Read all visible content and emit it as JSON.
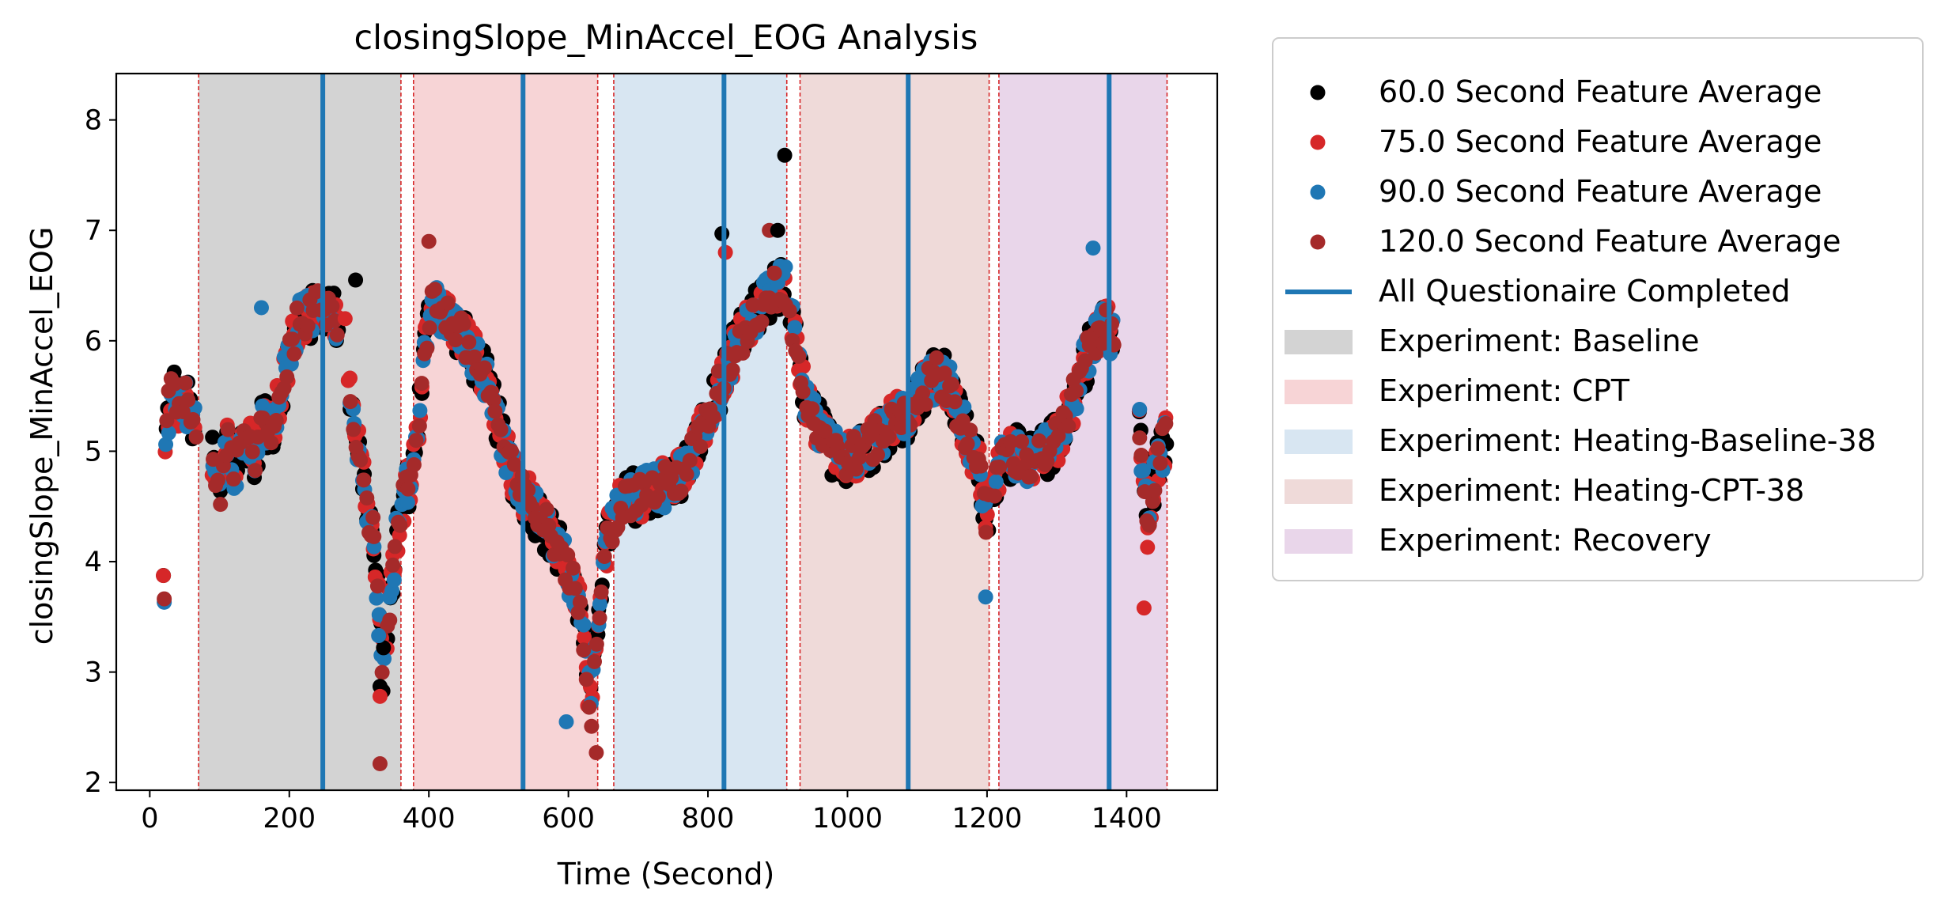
{
  "chart_data": {
    "type": "scatter",
    "title": "closingSlope_MinAccel_EOG Analysis",
    "xlabel": "Time (Second)",
    "ylabel": "closingSlope_MinAccel_EOG",
    "xlim": [
      -48,
      1530
    ],
    "ylim": [
      1.93,
      8.42
    ],
    "x_ticks": [
      0,
      200,
      400,
      600,
      800,
      1000,
      1200,
      1400
    ],
    "y_ticks": [
      2,
      3,
      4,
      5,
      6,
      7,
      8
    ],
    "grid": false,
    "legend_position": "outside-right",
    "phases": [
      {
        "name": "Experiment: Baseline",
        "start": 70,
        "end": 360,
        "color": "#d3d3d3"
      },
      {
        "name": "Experiment: CPT",
        "start": 378,
        "end": 642,
        "color": "#f7d4d6"
      },
      {
        "name": "Experiment: Heating-Baseline-38",
        "start": 665,
        "end": 913,
        "color": "#d8e6f2"
      },
      {
        "name": "Experiment: Heating-CPT-38",
        "start": 932,
        "end": 1203,
        "color": "#efdad9"
      },
      {
        "name": "Experiment: Recovery",
        "start": 1217,
        "end": 1458,
        "color": "#e9d6ea"
      }
    ],
    "phase_boundaries": [
      70,
      360,
      378,
      642,
      665,
      913,
      932,
      1203,
      1217,
      1458
    ],
    "questionnaire": {
      "label": "All Questionaire Completed",
      "color": "#1f77b4",
      "x": [
        248,
        535,
        823,
        1087,
        1375
      ]
    },
    "series": [
      {
        "name": "60.0 Second Feature Average",
        "color": "#000000"
      },
      {
        "name": "75.0 Second Feature Average",
        "color": "#d62728"
      },
      {
        "name": "90.0 Second Feature Average",
        "color": "#1f77b4"
      },
      {
        "name": "120.0 Second Feature Average",
        "color": "#a52a2a"
      }
    ],
    "anchors": [
      [
        20,
        3.8
      ],
      [
        22,
        5.1
      ],
      [
        25,
        5.3
      ],
      [
        30,
        5.45
      ],
      [
        35,
        5.6
      ],
      [
        40,
        5.4
      ],
      [
        50,
        5.5
      ],
      [
        60,
        5.3
      ],
      [
        70,
        5.15
      ],
      [
        90,
        4.9
      ],
      [
        100,
        4.6
      ],
      [
        110,
        5.1
      ],
      [
        120,
        4.8
      ],
      [
        130,
        5.0
      ],
      [
        140,
        5.15
      ],
      [
        150,
        4.9
      ],
      [
        160,
        5.3
      ],
      [
        170,
        5.15
      ],
      [
        180,
        5.3
      ],
      [
        190,
        5.6
      ],
      [
        200,
        5.9
      ],
      [
        210,
        6.1
      ],
      [
        220,
        6.25
      ],
      [
        230,
        6.2
      ],
      [
        240,
        6.3
      ],
      [
        248,
        6.3
      ],
      [
        258,
        6.3
      ],
      [
        275,
        6.1
      ],
      [
        290,
        5.4
      ],
      [
        300,
        5.0
      ],
      [
        310,
        4.6
      ],
      [
        320,
        4.2
      ],
      [
        330,
        3.4
      ],
      [
        335,
        3.0
      ],
      [
        345,
        3.7
      ],
      [
        355,
        4.3
      ],
      [
        365,
        4.6
      ],
      [
        375,
        4.8
      ],
      [
        385,
        5.3
      ],
      [
        395,
        6.0
      ],
      [
        405,
        6.4
      ],
      [
        415,
        6.3
      ],
      [
        430,
        6.2
      ],
      [
        450,
        6.0
      ],
      [
        470,
        5.8
      ],
      [
        490,
        5.5
      ],
      [
        505,
        5.1
      ],
      [
        520,
        4.8
      ],
      [
        535,
        4.6
      ],
      [
        550,
        4.5
      ],
      [
        565,
        4.35
      ],
      [
        580,
        4.2
      ],
      [
        595,
        4.0
      ],
      [
        605,
        3.8
      ],
      [
        615,
        3.6
      ],
      [
        625,
        3.1
      ],
      [
        632,
        2.6
      ],
      [
        638,
        3.3
      ],
      [
        648,
        3.9
      ],
      [
        660,
        4.3
      ],
      [
        675,
        4.5
      ],
      [
        695,
        4.6
      ],
      [
        720,
        4.65
      ],
      [
        745,
        4.7
      ],
      [
        765,
        4.8
      ],
      [
        780,
        5.0
      ],
      [
        800,
        5.3
      ],
      [
        815,
        5.55
      ],
      [
        830,
        5.8
      ],
      [
        845,
        6.0
      ],
      [
        860,
        6.15
      ],
      [
        875,
        6.3
      ],
      [
        895,
        6.45
      ],
      [
        910,
        6.5
      ],
      [
        925,
        6.0
      ],
      [
        935,
        5.6
      ],
      [
        945,
        5.35
      ],
      [
        960,
        5.2
      ],
      [
        980,
        5.0
      ],
      [
        1000,
        4.95
      ],
      [
        1020,
        5.0
      ],
      [
        1040,
        5.1
      ],
      [
        1055,
        5.2
      ],
      [
        1070,
        5.3
      ],
      [
        1087,
        5.35
      ],
      [
        1100,
        5.5
      ],
      [
        1115,
        5.6
      ],
      [
        1130,
        5.7
      ],
      [
        1145,
        5.6
      ],
      [
        1160,
        5.3
      ],
      [
        1175,
        5.1
      ],
      [
        1190,
        4.8
      ],
      [
        1198,
        4.3
      ],
      [
        1205,
        4.6
      ],
      [
        1215,
        4.8
      ],
      [
        1225,
        5.0
      ],
      [
        1245,
        4.95
      ],
      [
        1265,
        4.9
      ],
      [
        1285,
        5.0
      ],
      [
        1300,
        5.1
      ],
      [
        1315,
        5.3
      ],
      [
        1330,
        5.6
      ],
      [
        1345,
        5.9
      ],
      [
        1360,
        6.1
      ],
      [
        1375,
        6.1
      ],
      [
        1380,
        6.0
      ],
      [
        1418,
        5.2
      ],
      [
        1425,
        4.8
      ],
      [
        1432,
        4.4
      ],
      [
        1440,
        4.8
      ],
      [
        1450,
        5.0
      ],
      [
        1458,
        5.1
      ]
    ],
    "extra_points": [
      [
        910,
        7.68
      ],
      [
        1425,
        3.58
      ],
      [
        597,
        2.55
      ],
      [
        330,
        2.17
      ],
      [
        330,
        2.87
      ],
      [
        330,
        2.78
      ],
      [
        1198,
        3.68
      ],
      [
        640,
        2.27
      ],
      [
        335,
        3.22
      ],
      [
        1430,
        4.13
      ],
      [
        328,
        3.33
      ],
      [
        320,
        4.4
      ],
      [
        295,
        6.55
      ],
      [
        280,
        6.2
      ],
      [
        160,
        6.3
      ],
      [
        400,
        6.9
      ],
      [
        820,
        6.97
      ],
      [
        825,
        6.8
      ],
      [
        1352,
        6.84
      ],
      [
        888,
        7.0
      ],
      [
        900,
        7.0
      ]
    ]
  },
  "legend": {
    "items": [
      {
        "label": "60.0 Second Feature Average",
        "kind": "marker",
        "color": "#000000"
      },
      {
        "label": "75.0 Second Feature Average",
        "kind": "marker",
        "color": "#d62728"
      },
      {
        "label": "90.0 Second Feature Average",
        "kind": "marker",
        "color": "#1f77b4"
      },
      {
        "label": "120.0 Second Feature Average",
        "kind": "marker",
        "color": "#a52a2a"
      },
      {
        "label": "All Questionaire Completed",
        "kind": "line",
        "color": "#1f77b4"
      },
      {
        "label": "Experiment: Baseline",
        "kind": "patch",
        "color": "#d3d3d3"
      },
      {
        "label": "Experiment: CPT",
        "kind": "patch",
        "color": "#f7d4d6"
      },
      {
        "label": "Experiment: Heating-Baseline-38",
        "kind": "patch",
        "color": "#d8e6f2"
      },
      {
        "label": "Experiment: Heating-CPT-38",
        "kind": "patch",
        "color": "#efdad9"
      },
      {
        "label": "Experiment: Recovery",
        "kind": "patch",
        "color": "#e9d6ea"
      }
    ]
  }
}
